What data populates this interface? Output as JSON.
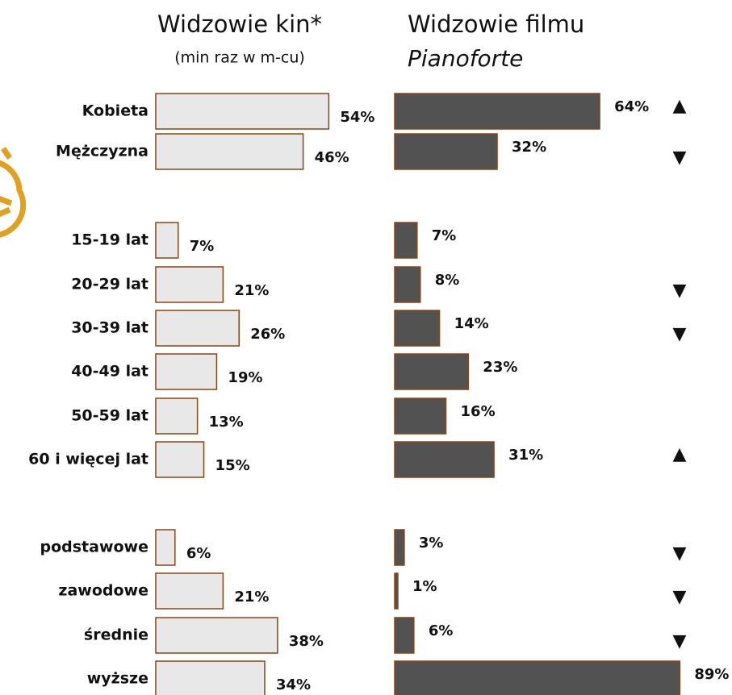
{
  "chart_data": {
    "type": "bar",
    "orientation": "horizontal",
    "categories": [
      "Kobieta",
      "Mężczyzna",
      "15-19 lat",
      "20-29 lat",
      "30-39 lat",
      "40-49 lat",
      "50-59 lat",
      "60 i więcej lat",
      "podstawowe",
      "zawodowe",
      "średnie",
      "wyższe"
    ],
    "xlim": [
      0,
      100
    ],
    "series": [
      {
        "name": "Widzowie kin*",
        "subtitle": "(min raz w m-cu)",
        "color": "#e8e8e8",
        "edge": "#8a4516",
        "values": [
          54,
          46,
          7,
          21,
          26,
          19,
          13,
          15,
          6,
          21,
          38,
          34
        ],
        "value_labels": [
          "54%",
          "46%",
          "7%",
          "21%",
          "26%",
          "19%",
          "13%",
          "15%",
          "6%",
          "21%",
          "38%",
          "34%"
        ]
      },
      {
        "name": "Widzowie filmu",
        "subtitle": "Pianoforte",
        "color": "#525252",
        "edge": "#8a4516",
        "values": [
          64,
          32,
          7,
          8,
          14,
          23,
          16,
          31,
          3,
          1,
          6,
          89
        ],
        "value_labels": [
          "64%",
          "32%",
          "7%",
          "8%",
          "14%",
          "23%",
          "16%",
          "31%",
          "3%",
          "1%",
          "6%",
          "89%"
        ],
        "indicators": [
          "▲",
          "▼",
          null,
          "▼",
          "▼",
          null,
          null,
          "▲",
          "▼",
          "▼",
          "▼",
          null
        ]
      }
    ]
  }
}
